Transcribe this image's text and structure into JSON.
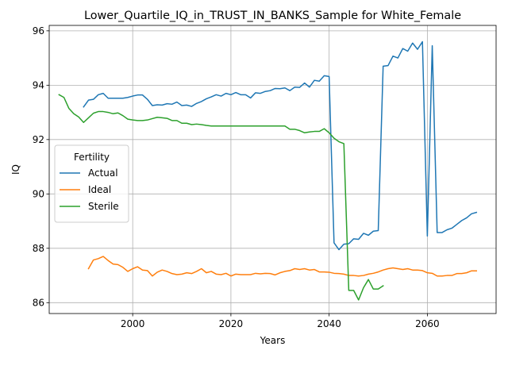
{
  "chart_data": {
    "type": "line",
    "title": "Lower_Quartile_IQ_in_TRUST_IN_BANKS_Sample for White_Female",
    "xlabel": "Years",
    "ylabel": "IQ",
    "xlim": [
      1983,
      2074
    ],
    "ylim": [
      85.6,
      96.2
    ],
    "xticks": [
      2000,
      2020,
      2040,
      2060
    ],
    "yticks": [
      86,
      88,
      90,
      92,
      94,
      96
    ],
    "grid": true,
    "legend": {
      "title": "Fertility",
      "placement": "center-left"
    },
    "series": [
      {
        "name": "Actual",
        "color": "#1f77b4",
        "x": [
          1990,
          1991,
          1992,
          1993,
          1994,
          1995,
          1996,
          1997,
          1998,
          1999,
          2000,
          2001,
          2002,
          2003,
          2004,
          2005,
          2006,
          2007,
          2008,
          2009,
          2010,
          2011,
          2012,
          2013,
          2014,
          2015,
          2016,
          2017,
          2018,
          2019,
          2020,
          2021,
          2022,
          2023,
          2024,
          2025,
          2026,
          2027,
          2028,
          2029,
          2030,
          2031,
          2032,
          2033,
          2034,
          2035,
          2036,
          2037,
          2038,
          2039,
          2040,
          2041,
          2042,
          2043,
          2044,
          2045,
          2046,
          2047,
          2048,
          2049,
          2050,
          2051,
          2052,
          2053,
          2054,
          2055,
          2056,
          2057,
          2058,
          2059,
          2060,
          2061,
          2062,
          2063,
          2064,
          2065,
          2066,
          2067,
          2068,
          2069,
          2070
        ],
        "values": [
          93.2,
          93.45,
          93.48,
          93.65,
          93.7,
          93.52,
          93.52,
          93.52,
          93.52,
          93.55,
          93.6,
          93.64,
          93.64,
          93.48,
          93.25,
          93.28,
          93.27,
          93.32,
          93.3,
          93.38,
          93.25,
          93.27,
          93.22,
          93.33,
          93.4,
          93.5,
          93.57,
          93.65,
          93.6,
          93.7,
          93.65,
          93.73,
          93.65,
          93.65,
          93.53,
          93.72,
          93.7,
          93.77,
          93.8,
          93.88,
          93.87,
          93.9,
          93.8,
          93.93,
          93.92,
          94.08,
          93.93,
          94.18,
          94.15,
          94.35,
          94.32,
          88.2,
          87.95,
          88.15,
          88.17,
          88.35,
          88.33,
          88.55,
          88.48,
          88.63,
          88.65,
          94.7,
          94.72,
          95.07,
          95.0,
          95.35,
          95.25,
          95.55,
          95.32,
          95.6,
          88.45,
          95.45,
          88.58,
          88.58,
          88.68,
          88.74,
          88.88,
          89.02,
          89.12,
          89.27,
          89.32
        ]
      },
      {
        "name": "Ideal",
        "color": "#ff7f0e",
        "x": [
          1991,
          1992,
          1993,
          1994,
          1995,
          1996,
          1997,
          1998,
          1999,
          2000,
          2001,
          2002,
          2003,
          2004,
          2005,
          2006,
          2007,
          2008,
          2009,
          2010,
          2011,
          2012,
          2013,
          2014,
          2015,
          2016,
          2017,
          2018,
          2019,
          2020,
          2021,
          2022,
          2023,
          2024,
          2025,
          2026,
          2027,
          2028,
          2029,
          2030,
          2031,
          2032,
          2033,
          2034,
          2035,
          2036,
          2037,
          2038,
          2039,
          2040,
          2041,
          2042,
          2043,
          2044,
          2045,
          2046,
          2047,
          2048,
          2049,
          2050,
          2051,
          2052,
          2053,
          2054,
          2055,
          2056,
          2057,
          2058,
          2059,
          2060,
          2061,
          2062,
          2063,
          2064,
          2065,
          2066,
          2067,
          2068,
          2069,
          2070
        ],
        "values": [
          87.25,
          87.57,
          87.62,
          87.7,
          87.55,
          87.42,
          87.4,
          87.3,
          87.15,
          87.25,
          87.32,
          87.2,
          87.18,
          86.98,
          87.12,
          87.2,
          87.15,
          87.07,
          87.03,
          87.05,
          87.1,
          87.07,
          87.15,
          87.25,
          87.1,
          87.15,
          87.05,
          87.03,
          87.08,
          86.98,
          87.05,
          87.03,
          87.03,
          87.03,
          87.08,
          87.06,
          87.08,
          87.07,
          87.02,
          87.1,
          87.15,
          87.18,
          87.25,
          87.22,
          87.25,
          87.2,
          87.22,
          87.13,
          87.13,
          87.12,
          87.08,
          87.07,
          87.05,
          87.0,
          87.0,
          86.98,
          87.0,
          87.05,
          87.08,
          87.13,
          87.2,
          87.25,
          87.28,
          87.25,
          87.22,
          87.25,
          87.2,
          87.2,
          87.18,
          87.1,
          87.08,
          86.98,
          86.98,
          87.0,
          87.0,
          87.07,
          87.07,
          87.1,
          87.17,
          87.17
        ]
      },
      {
        "name": "Sterile",
        "color": "#2ca02c",
        "x": [
          1985,
          1986,
          1987,
          1988,
          1989,
          1990,
          1991,
          1992,
          1993,
          1994,
          1995,
          1996,
          1997,
          1998,
          1999,
          2000,
          2001,
          2002,
          2003,
          2004,
          2005,
          2006,
          2007,
          2008,
          2009,
          2010,
          2011,
          2012,
          2013,
          2014,
          2015,
          2016,
          2017,
          2018,
          2019,
          2020,
          2021,
          2022,
          2023,
          2024,
          2025,
          2026,
          2027,
          2028,
          2029,
          2030,
          2031,
          2032,
          2033,
          2034,
          2035,
          2036,
          2037,
          2038,
          2039,
          2040,
          2041,
          2042,
          2043,
          2044,
          2045,
          2046,
          2047,
          2048,
          2049,
          2050,
          2051
        ],
        "values": [
          93.65,
          93.55,
          93.15,
          92.95,
          92.83,
          92.63,
          92.8,
          92.97,
          93.03,
          93.03,
          93.0,
          92.95,
          92.98,
          92.88,
          92.75,
          92.72,
          92.7,
          92.7,
          92.72,
          92.77,
          92.82,
          92.8,
          92.78,
          92.7,
          92.7,
          92.6,
          92.6,
          92.55,
          92.57,
          92.55,
          92.52,
          92.5,
          92.5,
          92.5,
          92.5,
          92.5,
          92.5,
          92.5,
          92.5,
          92.5,
          92.5,
          92.5,
          92.5,
          92.5,
          92.5,
          92.5,
          92.5,
          92.38,
          92.38,
          92.33,
          92.25,
          92.28,
          92.3,
          92.3,
          92.4,
          92.25,
          92.05,
          91.92,
          91.85,
          86.45,
          86.45,
          86.1,
          86.55,
          86.85,
          86.5,
          86.5,
          86.62
        ]
      }
    ]
  }
}
